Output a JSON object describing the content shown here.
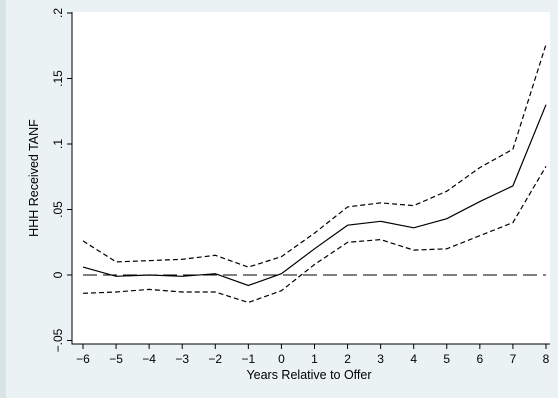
{
  "chart_data": {
    "type": "line",
    "title": "",
    "xlabel": "Years Relative to Offer",
    "ylabel": "HHH Received TANF",
    "xlim": [
      -6,
      8
    ],
    "ylim": [
      -0.05,
      0.2
    ],
    "x_ticks": [
      -6,
      -5,
      -4,
      -3,
      -2,
      -1,
      0,
      1,
      2,
      3,
      4,
      5,
      6,
      7,
      8
    ],
    "x_tick_labels": [
      "−6",
      "−5",
      "−4",
      "−3",
      "−2",
      "−1",
      "0",
      "1",
      "2",
      "3",
      "4",
      "5",
      "6",
      "7",
      "8"
    ],
    "y_ticks": [
      -0.05,
      0,
      0.05,
      0.1,
      0.15,
      0.2
    ],
    "y_tick_labels": [
      "−.05",
      "0",
      ".05",
      ".1",
      ".15",
      ".2"
    ],
    "grid": false,
    "legend": "none",
    "x": [
      -6,
      -5,
      -4,
      -3,
      -2,
      -1,
      0,
      1,
      2,
      3,
      4,
      5,
      6,
      7,
      8
    ],
    "series": [
      {
        "style": "solid",
        "values": [
          0.006,
          -0.001,
          0.0,
          -0.001,
          0.001,
          -0.008,
          0.001,
          0.02,
          0.038,
          0.041,
          0.036,
          0.043,
          0.056,
          0.068,
          0.13
        ]
      },
      {
        "style": "dashed-upper",
        "values": [
          0.026,
          0.01,
          0.011,
          0.012,
          0.015,
          0.006,
          0.014,
          0.032,
          0.052,
          0.055,
          0.053,
          0.064,
          0.082,
          0.096,
          0.176
        ]
      },
      {
        "style": "dashed-lower",
        "values": [
          -0.014,
          -0.013,
          -0.011,
          -0.013,
          -0.013,
          -0.021,
          -0.012,
          0.008,
          0.025,
          0.027,
          0.019,
          0.02,
          0.03,
          0.04,
          0.083
        ]
      }
    ],
    "reference_line": {
      "y": 0,
      "style": "long-dash"
    }
  },
  "colors": {
    "background": "#eaf2f3",
    "plot_area": "#ffffff",
    "line": "#000000"
  }
}
